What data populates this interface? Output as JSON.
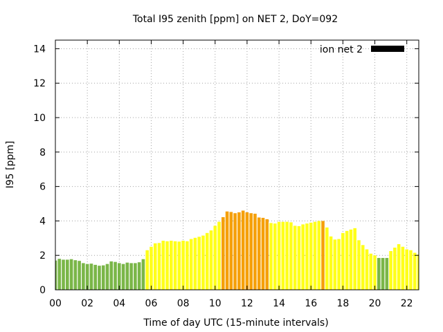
{
  "chart_data": {
    "type": "bar",
    "title": "Total I95 zenith [ppm] on NET 2, DoY=092",
    "xlabel": "Time of day UTC (15-minute intervals)",
    "ylabel": "I95 [ppm]",
    "xlim": [
      0,
      22.75
    ],
    "ylim": [
      0,
      14.5
    ],
    "x_ticks": [
      "00",
      "02",
      "04",
      "06",
      "08",
      "10",
      "12",
      "14",
      "16",
      "18",
      "20",
      "22"
    ],
    "y_ticks": [
      "0",
      "2",
      "4",
      "6",
      "8",
      "10",
      "12",
      "14"
    ],
    "grid": true,
    "legend": {
      "position": "top-right",
      "label": "ion net 2",
      "color": "#000000"
    },
    "bar_width_hours": 0.2,
    "colors": {
      "green": "#7ab648",
      "yellow": "#ffff1a",
      "orange": "#f5a00a"
    },
    "series": [
      {
        "name": "ion net 2",
        "x": [
          0,
          0.25,
          0.5,
          0.75,
          1,
          1.25,
          1.5,
          1.75,
          2,
          2.25,
          2.5,
          2.75,
          3,
          3.25,
          3.5,
          3.75,
          4,
          4.25,
          4.5,
          4.75,
          5,
          5.25,
          5.5,
          5.75,
          6,
          6.25,
          6.5,
          6.75,
          7,
          7.25,
          7.5,
          7.75,
          8,
          8.25,
          8.5,
          8.75,
          9,
          9.25,
          9.5,
          9.75,
          10,
          10.25,
          10.5,
          10.75,
          11,
          11.25,
          11.5,
          11.75,
          12,
          12.25,
          12.5,
          12.75,
          13,
          13.25,
          13.5,
          13.75,
          14,
          14.25,
          14.5,
          14.75,
          15,
          15.25,
          15.5,
          15.75,
          16,
          16.25,
          16.5,
          16.75,
          17,
          17.25,
          17.5,
          17.75,
          18,
          18.25,
          18.5,
          18.75,
          19,
          19.25,
          19.5,
          19.75,
          20,
          20.25,
          20.5,
          20.75,
          21,
          21.25,
          21.5,
          21.75,
          22,
          22.25,
          22.5,
          22.75
        ],
        "values": [
          1.7,
          1.8,
          1.75,
          1.75,
          1.78,
          1.72,
          1.68,
          1.55,
          1.5,
          1.52,
          1.45,
          1.4,
          1.42,
          1.5,
          1.65,
          1.62,
          1.55,
          1.5,
          1.58,
          1.55,
          1.55,
          1.6,
          1.78,
          2.3,
          2.5,
          2.7,
          2.72,
          2.85,
          2.82,
          2.85,
          2.82,
          2.8,
          2.85,
          2.82,
          2.95,
          3.02,
          3.08,
          3.15,
          3.3,
          3.45,
          3.72,
          3.95,
          4.22,
          4.55,
          4.52,
          4.45,
          4.5,
          4.6,
          4.5,
          4.45,
          4.42,
          4.2,
          4.18,
          4.1,
          3.88,
          3.85,
          3.95,
          3.95,
          3.95,
          3.92,
          3.72,
          3.7,
          3.8,
          3.85,
          3.9,
          3.95,
          4.0,
          4.0,
          3.62,
          3.1,
          2.92,
          2.95,
          3.3,
          3.42,
          3.5,
          3.58,
          2.88,
          2.6,
          2.35,
          2.1,
          2.0,
          1.85,
          1.85,
          1.85,
          2.25,
          2.45,
          2.65,
          2.5,
          2.35,
          2.3,
          2.15,
          2.05
        ],
        "category": [
          "g",
          "g",
          "g",
          "g",
          "g",
          "g",
          "g",
          "g",
          "g",
          "g",
          "g",
          "g",
          "g",
          "g",
          "g",
          "g",
          "g",
          "g",
          "g",
          "g",
          "g",
          "g",
          "g",
          "y",
          "y",
          "y",
          "y",
          "y",
          "y",
          "y",
          "y",
          "y",
          "y",
          "y",
          "y",
          "y",
          "y",
          "y",
          "y",
          "y",
          "y",
          "y",
          "o",
          "o",
          "o",
          "o",
          "o",
          "o",
          "o",
          "o",
          "o",
          "o",
          "o",
          "o",
          "y",
          "y",
          "y",
          "y",
          "y",
          "y",
          "y",
          "y",
          "y",
          "y",
          "y",
          "y",
          "y",
          "o",
          "y",
          "y",
          "y",
          "y",
          "y",
          "y",
          "y",
          "y",
          "y",
          "y",
          "y",
          "y",
          "y",
          "g",
          "g",
          "g",
          "y",
          "y",
          "y",
          "y",
          "y",
          "y",
          "y",
          "y"
        ]
      }
    ]
  }
}
